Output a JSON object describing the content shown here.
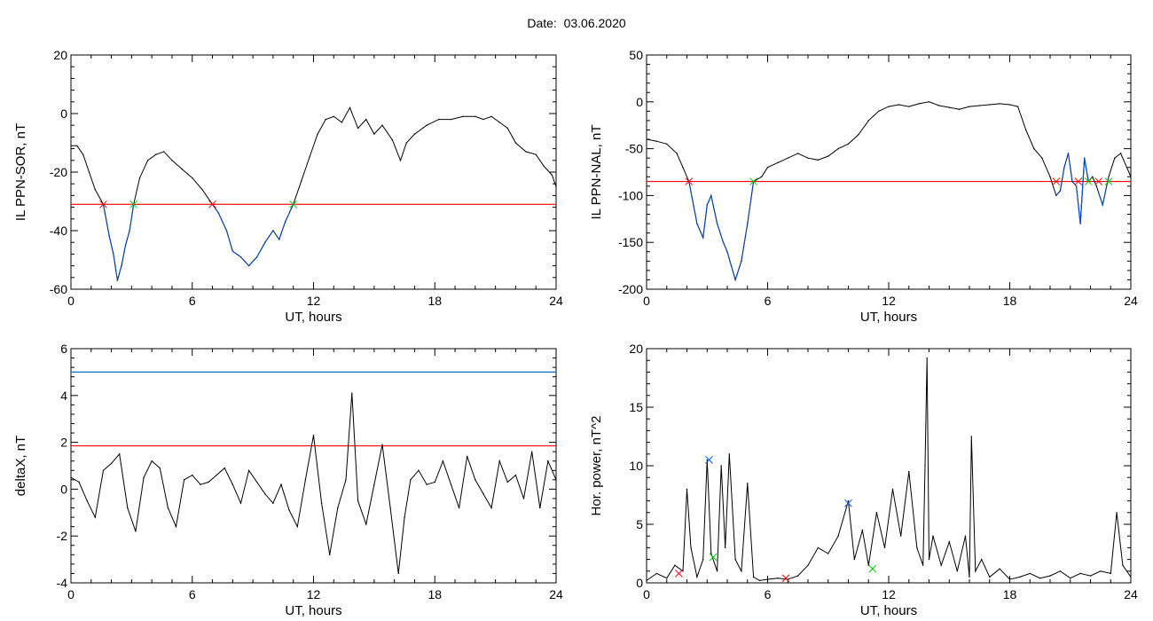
{
  "figure": {
    "date_prefix": "Date:",
    "date": "03.06.2020",
    "colors": {
      "signal": "#000000",
      "threshold": "#ff0000",
      "upper_line": "#0070c0",
      "below_segment": "#0050d0",
      "start_marker": "#ff0000",
      "end_marker": "#00cc00",
      "peak_marker": "#0060ff"
    }
  },
  "chart_data": [
    {
      "id": "sor",
      "type": "line",
      "title": "",
      "xlabel": "UT, hours",
      "ylabel": "IL PPN-SOR, nT",
      "xlim": [
        0,
        24
      ],
      "ylim": [
        -60,
        20
      ],
      "xticks": [
        0,
        6,
        12,
        18,
        24
      ],
      "yticks": [
        -60,
        -40,
        -20,
        0,
        20
      ],
      "threshold": -31,
      "series": [
        {
          "x": [
            0,
            0.3,
            0.6,
            0.9,
            1.2,
            1.6,
            1.9,
            2.1,
            2.3,
            2.5,
            2.7,
            2.9,
            3.1,
            3.4,
            3.8,
            4.2,
            4.6,
            5.0,
            5.5,
            6.0,
            6.5,
            7.0,
            7.3,
            7.7,
            8.0,
            8.4,
            8.8,
            9.2,
            9.6,
            10.0,
            10.3,
            10.6,
            11.0,
            11.4,
            11.8,
            12.2,
            12.6,
            13.0,
            13.4,
            13.8,
            14.2,
            14.6,
            15.0,
            15.4,
            15.9,
            16.3,
            16.6,
            17.0,
            17.6,
            18.2,
            18.8,
            19.4,
            20.0,
            20.4,
            20.8,
            21.2,
            21.6,
            22.0,
            22.5,
            23.0,
            23.4,
            23.8,
            24.0
          ],
          "y": [
            -11,
            -11,
            -14,
            -20,
            -26,
            -31,
            -42,
            -48,
            -57,
            -52,
            -45,
            -40,
            -31,
            -22,
            -16,
            -14,
            -13,
            -16,
            -19,
            -22,
            -26,
            -31,
            -34,
            -40,
            -47,
            -49,
            -52,
            -49,
            -44,
            -40,
            -43,
            -37,
            -31,
            -23,
            -15,
            -7,
            -2,
            -1,
            -3,
            2,
            -5,
            -2,
            -7,
            -4,
            -9,
            -16,
            -10,
            -7,
            -4,
            -2,
            -2,
            -1,
            -1,
            -2,
            -1,
            -3,
            -5,
            -10,
            -13,
            -14,
            -18,
            -21,
            -25
          ]
        }
      ],
      "crossings": [
        {
          "x": 1.6,
          "kind": "start"
        },
        {
          "x": 3.1,
          "kind": "end"
        },
        {
          "x": 7.0,
          "kind": "start"
        },
        {
          "x": 11.0,
          "kind": "end"
        }
      ]
    },
    {
      "id": "nal",
      "type": "line",
      "title": "",
      "xlabel": "UT, hours",
      "ylabel": "IL PPN-NAL, nT",
      "xlim": [
        0,
        24
      ],
      "ylim": [
        -200,
        50
      ],
      "xticks": [
        0,
        6,
        12,
        18,
        24
      ],
      "yticks": [
        -200,
        -150,
        -100,
        -50,
        0,
        50
      ],
      "threshold": -85,
      "series": [
        {
          "x": [
            0,
            0.5,
            1.0,
            1.5,
            1.8,
            2.1,
            2.5,
            2.8,
            3.0,
            3.2,
            3.5,
            3.8,
            4.0,
            4.2,
            4.4,
            4.7,
            5.0,
            5.3,
            5.7,
            6.0,
            6.5,
            7.0,
            7.5,
            8.0,
            8.5,
            9.0,
            9.5,
            10.0,
            10.5,
            11.0,
            11.5,
            12.0,
            12.5,
            13.0,
            13.5,
            14.0,
            14.5,
            15.0,
            15.5,
            16.0,
            16.5,
            17.0,
            17.5,
            18.0,
            18.4,
            18.8,
            19.2,
            19.6,
            20.0,
            20.3,
            20.5,
            20.7,
            20.9,
            21.1,
            21.3,
            21.5,
            21.7,
            21.9,
            22.1,
            22.3,
            22.6,
            22.9,
            23.2,
            23.5,
            23.8,
            24.0
          ],
          "y": [
            -40,
            -42,
            -45,
            -55,
            -70,
            -85,
            -130,
            -145,
            -110,
            -100,
            -130,
            -150,
            -160,
            -175,
            -190,
            -170,
            -130,
            -85,
            -80,
            -70,
            -65,
            -60,
            -55,
            -60,
            -62,
            -58,
            -50,
            -45,
            -35,
            -20,
            -10,
            -5,
            -3,
            -5,
            -2,
            0,
            -4,
            -6,
            -8,
            -5,
            -4,
            -3,
            -2,
            -3,
            -5,
            -30,
            -50,
            -60,
            -80,
            -100,
            -95,
            -70,
            -55,
            -85,
            -90,
            -130,
            -60,
            -85,
            -80,
            -90,
            -110,
            -80,
            -60,
            -55,
            -70,
            -80
          ]
        }
      ],
      "crossings": [
        {
          "x": 2.1,
          "kind": "start"
        },
        {
          "x": 5.3,
          "kind": "end"
        },
        {
          "x": 20.3,
          "kind": "start"
        },
        {
          "x": 21.4,
          "kind": "start"
        },
        {
          "x": 21.9,
          "kind": "end"
        },
        {
          "x": 22.4,
          "kind": "start"
        },
        {
          "x": 22.9,
          "kind": "end"
        }
      ]
    },
    {
      "id": "deltax",
      "type": "line",
      "title": "",
      "xlabel": "UT, hours",
      "ylabel": "deltaX, nT",
      "xlim": [
        0,
        24
      ],
      "ylim": [
        -4,
        6
      ],
      "xticks": [
        0,
        6,
        12,
        18,
        24
      ],
      "yticks": [
        -4,
        -2,
        0,
        2,
        4,
        6
      ],
      "threshold": 1.85,
      "upper_line": 5.0,
      "series": [
        {
          "x": [
            0,
            0.4,
            0.8,
            1.2,
            1.6,
            2.0,
            2.4,
            2.8,
            3.2,
            3.6,
            4.0,
            4.4,
            4.8,
            5.2,
            5.6,
            6.0,
            6.4,
            6.8,
            7.2,
            7.6,
            8.0,
            8.4,
            8.8,
            9.2,
            9.6,
            10.0,
            10.4,
            10.8,
            11.2,
            11.6,
            12.0,
            12.4,
            12.8,
            13.2,
            13.6,
            13.9,
            14.2,
            14.6,
            15.0,
            15.4,
            15.8,
            16.2,
            16.5,
            16.8,
            17.2,
            17.6,
            18.0,
            18.4,
            18.8,
            19.2,
            19.6,
            20.0,
            20.4,
            20.8,
            21.2,
            21.6,
            22.0,
            22.4,
            22.8,
            23.2,
            23.6,
            24.0
          ],
          "y": [
            0.5,
            0.3,
            -0.5,
            -1.2,
            0.8,
            1.1,
            1.5,
            -0.8,
            -1.8,
            0.5,
            1.2,
            0.9,
            -0.8,
            -1.6,
            0.4,
            0.6,
            0.2,
            0.3,
            0.6,
            0.9,
            0.2,
            -0.6,
            0.8,
            0.3,
            -0.2,
            -0.6,
            0.2,
            -0.9,
            -1.6,
            0.4,
            2.3,
            -0.6,
            -2.8,
            -0.8,
            0.4,
            4.1,
            -0.5,
            -1.5,
            0.2,
            1.9,
            -0.8,
            -3.6,
            -1.2,
            0.4,
            0.8,
            0.2,
            0.3,
            1.2,
            0.2,
            -0.8,
            1.4,
            0.4,
            -0.2,
            -0.8,
            1.2,
            0.3,
            0.6,
            -0.4,
            1.6,
            -0.8,
            1.2,
            0.4
          ]
        }
      ]
    },
    {
      "id": "power",
      "type": "line",
      "title": "",
      "xlabel": "UT, hours",
      "ylabel": "Hor. power, nT^2",
      "xlim": [
        0,
        24
      ],
      "ylim": [
        0,
        20
      ],
      "xticks": [
        0,
        6,
        12,
        18,
        24
      ],
      "yticks": [
        0,
        5,
        10,
        15,
        20
      ],
      "series": [
        {
          "x": [
            0,
            0.5,
            1.0,
            1.4,
            1.8,
            2.0,
            2.2,
            2.5,
            2.8,
            3.0,
            3.2,
            3.5,
            3.7,
            3.9,
            4.1,
            4.4,
            4.7,
            5.0,
            5.3,
            5.6,
            6.0,
            6.5,
            7.0,
            7.5,
            8.0,
            8.5,
            9.0,
            9.5,
            10.0,
            10.3,
            10.7,
            11.0,
            11.4,
            11.8,
            12.2,
            12.6,
            13.0,
            13.4,
            13.7,
            13.8,
            13.9,
            14.0,
            14.2,
            14.6,
            15.0,
            15.4,
            15.8,
            16.0,
            16.1,
            16.3,
            16.6,
            17.0,
            17.5,
            18.0,
            18.5,
            19.0,
            19.5,
            20.0,
            20.5,
            21.0,
            21.5,
            22.0,
            22.5,
            23.0,
            23.3,
            23.6,
            24.0
          ],
          "y": [
            0.2,
            0.8,
            0.4,
            1.5,
            1.0,
            8.0,
            3.0,
            0.5,
            2.0,
            10.5,
            2.5,
            1.0,
            10.0,
            3.0,
            11.0,
            2.0,
            1.0,
            8.5,
            0.5,
            0.2,
            0.3,
            0.4,
            0.3,
            0.6,
            1.5,
            3.0,
            2.5,
            4.0,
            7.0,
            2.0,
            4.5,
            1.5,
            6.0,
            3.0,
            8.0,
            4.0,
            9.5,
            3.0,
            1.5,
            10.0,
            19.2,
            2.0,
            4.0,
            1.5,
            3.5,
            1.0,
            4.0,
            0.5,
            12.5,
            1.0,
            2.0,
            0.5,
            1.2,
            0.3,
            0.5,
            0.8,
            0.4,
            0.6,
            1.0,
            0.4,
            0.8,
            0.6,
            1.0,
            0.8,
            6.0,
            1.5,
            0.5
          ]
        }
      ],
      "markers": [
        {
          "x": 1.6,
          "y": 0.8,
          "kind": "start"
        },
        {
          "x": 3.3,
          "y": 2.2,
          "kind": "end"
        },
        {
          "x": 3.1,
          "y": 10.5,
          "kind": "peak"
        },
        {
          "x": 6.9,
          "y": 0.4,
          "kind": "start"
        },
        {
          "x": 10.0,
          "y": 6.8,
          "kind": "peak"
        },
        {
          "x": 11.2,
          "y": 1.2,
          "kind": "end"
        }
      ]
    }
  ]
}
